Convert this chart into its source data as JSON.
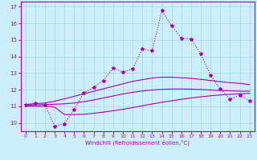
{
  "xlabel": "Windchill (Refroidissement éolien,°C)",
  "ylabel": "",
  "background_color": "#cceeff",
  "grid_color": "#aadddd",
  "line_color": "#aa00aa",
  "xlim": [
    -0.5,
    23.5
  ],
  "ylim": [
    9.5,
    17.3
  ],
  "xticks": [
    0,
    1,
    2,
    3,
    4,
    5,
    6,
    7,
    8,
    9,
    10,
    11,
    12,
    13,
    14,
    15,
    16,
    17,
    18,
    19,
    20,
    21,
    22,
    23
  ],
  "yticks": [
    10,
    11,
    12,
    13,
    14,
    15,
    16,
    17
  ],
  "line1_x": [
    0,
    1,
    2,
    3,
    4,
    5,
    6,
    7,
    8,
    9,
    10,
    11,
    12,
    13,
    14,
    15,
    16,
    17,
    18,
    19,
    20,
    21,
    22,
    23
  ],
  "line1_y": [
    11.1,
    11.15,
    11.2,
    11.3,
    11.45,
    11.6,
    11.75,
    11.9,
    12.05,
    12.2,
    12.35,
    12.5,
    12.6,
    12.7,
    12.75,
    12.75,
    12.72,
    12.68,
    12.62,
    12.55,
    12.48,
    12.42,
    12.38,
    12.3
  ],
  "line2_x": [
    0,
    1,
    2,
    3,
    4,
    5,
    6,
    7,
    8,
    9,
    10,
    11,
    12,
    13,
    14,
    15,
    16,
    17,
    18,
    19,
    20,
    21,
    22,
    23
  ],
  "line2_y": [
    11.05,
    11.08,
    11.1,
    11.12,
    11.15,
    11.2,
    11.28,
    11.38,
    11.5,
    11.62,
    11.74,
    11.84,
    11.92,
    11.98,
    12.02,
    12.04,
    12.04,
    12.03,
    12.01,
    11.98,
    11.95,
    11.93,
    11.91,
    11.9
  ],
  "line3_x": [
    0,
    1,
    2,
    3,
    4,
    5,
    6,
    7,
    8,
    9,
    10,
    11,
    12,
    13,
    14,
    15,
    16,
    17,
    18,
    19,
    20,
    21,
    22,
    23
  ],
  "line3_y": [
    11.0,
    11.0,
    11.0,
    10.95,
    10.5,
    10.5,
    10.52,
    10.58,
    10.65,
    10.73,
    10.82,
    10.92,
    11.03,
    11.14,
    11.24,
    11.33,
    11.42,
    11.5,
    11.57,
    11.63,
    11.68,
    11.72,
    11.75,
    11.77
  ],
  "line4_x": [
    0,
    1,
    2,
    3,
    4,
    5,
    6,
    7,
    8,
    9,
    10,
    11,
    12,
    13,
    14,
    15,
    16,
    17,
    18,
    19,
    20,
    21,
    22,
    23
  ],
  "line4_y": [
    11.1,
    11.2,
    11.1,
    9.8,
    9.95,
    10.8,
    11.8,
    12.15,
    12.55,
    13.3,
    13.05,
    13.25,
    14.45,
    14.35,
    16.75,
    15.85,
    15.1,
    15.05,
    14.15,
    12.85,
    12.05,
    11.45,
    11.65,
    11.35
  ],
  "figsize": [
    3.2,
    2.0
  ],
  "dpi": 100
}
